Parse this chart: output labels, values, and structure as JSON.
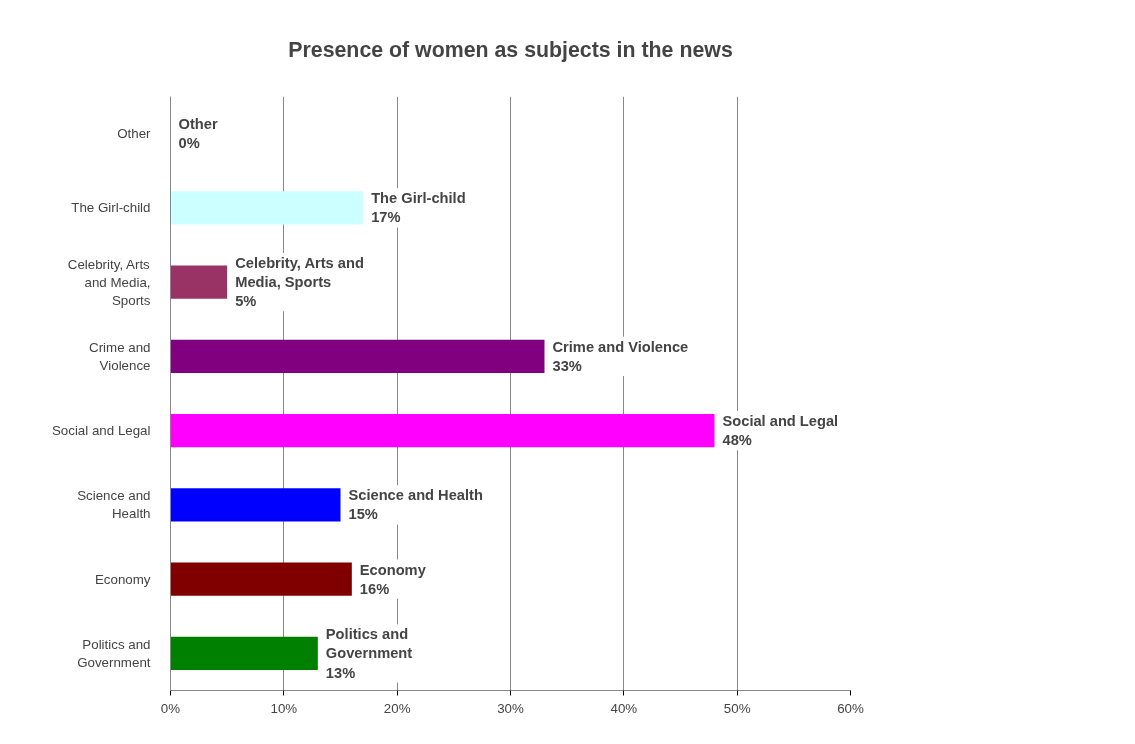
{
  "chart_data": {
    "type": "bar",
    "orientation": "horizontal",
    "title": "Presence of women as subjects in the news",
    "categories": [
      "Other",
      "The Girl-child",
      "Celebrity, Arts\nand Media,\nSports",
      "Crime and\nViolence",
      "Social and Legal",
      "Science and\nHealth",
      "Economy",
      "Politics and\nGovernment"
    ],
    "values": [
      0,
      17,
      5,
      33,
      48,
      15,
      16,
      13
    ],
    "colors": [
      "#ffffff",
      "#ccffff",
      "#993366",
      "#800080",
      "#ff00ff",
      "#0000ff",
      "#800000",
      "#008000"
    ],
    "value_labels": [
      "Other\n0%",
      "The Girl-child\n17%",
      "Celebrity, Arts and\nMedia, Sports\n5%",
      "Crime and Violence\n33%",
      "Social and Legal\n48%",
      "Science and Health\n15%",
      "Economy\n16%",
      "Politics and\nGovernment\n13%"
    ],
    "xlim": [
      0,
      60
    ],
    "xticks": [
      {
        "value": 0,
        "label": "0%"
      },
      {
        "value": 10,
        "label": "10%"
      },
      {
        "value": 20,
        "label": "20%"
      },
      {
        "value": 30,
        "label": "30%"
      },
      {
        "value": 40,
        "label": "40%"
      },
      {
        "value": 50,
        "label": "50%"
      },
      {
        "value": 60,
        "label": "60%"
      }
    ],
    "grid": "x"
  }
}
